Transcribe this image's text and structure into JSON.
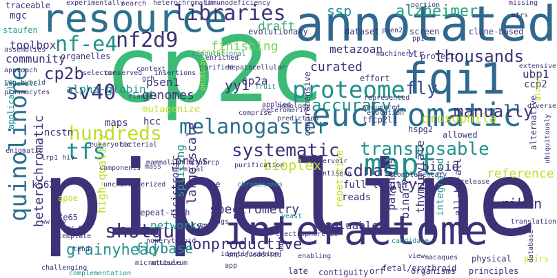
{
  "palette": {
    "navy": "#3b3277",
    "purple": "#452a70",
    "indigo": "#3e4c8a",
    "blue": "#31688e",
    "steel": "#2d708e",
    "teal": "#21918c",
    "sea": "#25a085",
    "green": "#3bbb75",
    "lime": "#7ad151",
    "yellow": "#bddf26",
    "gold": "#fde725",
    "faint": "#b8de29"
  },
  "words": [
    {
      "id": "pipeline",
      "text": "pipeline",
      "color": "navy"
    },
    {
      "id": "cp2c",
      "text": "cp2c",
      "color": "green"
    },
    {
      "id": "annotated",
      "text": "annotated",
      "color": "blue"
    },
    {
      "id": "resource",
      "text": "resource",
      "color": "steel"
    },
    {
      "id": "interactome",
      "text": "interactome",
      "color": "navy"
    },
    {
      "id": "fqi1",
      "text": "fqi1",
      "color": "blue"
    },
    {
      "id": "euchromatic",
      "text": "euchromatic",
      "color": "steel"
    },
    {
      "id": "quinolinone",
      "text": "quinolinone",
      "color": "steel"
    },
    {
      "id": "melanogaster",
      "text": "melanogaster",
      "color": "steel"
    },
    {
      "id": "mapt",
      "text": "mapt",
      "color": "teal"
    },
    {
      "id": "proteome",
      "text": "proteome",
      "color": "teal"
    },
    {
      "id": "transposable",
      "text": "transposable",
      "color": "teal"
    },
    {
      "id": "shotgun",
      "text": "shotgun",
      "color": "navy"
    },
    {
      "id": "hundreds",
      "text": "hundreds",
      "color": "yellow"
    },
    {
      "id": "libraries",
      "text": "libraries",
      "color": "navy"
    },
    {
      "id": "nf2d9",
      "text": "nf2d9",
      "color": "navy"
    },
    {
      "id": "nf-e4",
      "text": "nf-e4",
      "color": "teal"
    },
    {
      "id": "sv40",
      "text": "sv40",
      "color": "navy"
    },
    {
      "id": "tfs",
      "text": "tfs",
      "color": "teal"
    },
    {
      "id": "systematic",
      "text": "systematic",
      "color": "navy"
    },
    {
      "id": "cp2b",
      "text": "cp2b",
      "color": "navy"
    },
    {
      "id": "grainyhead",
      "text": "grainyhead",
      "color": "teal"
    },
    {
      "id": "accuracy",
      "text": "accuracy",
      "color": "teal"
    },
    {
      "id": "manually",
      "text": "manually",
      "color": "navy"
    },
    {
      "id": "thousands",
      "text": "thousands",
      "color": "navy"
    },
    {
      "id": "alzheimer",
      "text": "alzheimer",
      "color": "sea"
    },
    {
      "id": "fly",
      "text": "fly",
      "color": "indigo"
    },
    {
      "id": "y2h",
      "text": "y2h",
      "color": "navy"
    },
    {
      "id": "cdnas",
      "text": "cdnas",
      "color": "navy"
    },
    {
      "id": "heterochromatic",
      "text": "heterochromatic",
      "color": "navy"
    },
    {
      "id": "nonproductive",
      "text": "nonproductive",
      "color": "navy"
    },
    {
      "id": "flybase",
      "text": "flybase",
      "color": "teal"
    },
    {
      "id": "large-scale",
      "text": "large-scale",
      "color": "navy"
    },
    {
      "id": "curated",
      "text": "curated",
      "color": "navy"
    },
    {
      "id": "finishing",
      "text": "finishing",
      "color": "lime"
    },
    {
      "id": "draft",
      "text": "draft",
      "color": "green"
    },
    {
      "id": "ssp",
      "text": "ssp",
      "color": "teal"
    },
    {
      "id": "alpha-globin",
      "text": "alpha-globin",
      "color": "teal"
    },
    {
      "id": "psen1",
      "text": "psen1",
      "color": "navy"
    },
    {
      "id": "genomes",
      "text": "genomes",
      "color": "navy"
    },
    {
      "id": "cp2a",
      "text": "cp2a",
      "color": "navy"
    },
    {
      "id": "yy1",
      "text": "yy1",
      "color": "navy"
    },
    {
      "id": "drosophila",
      "text": "drosophila",
      "color": "yellow"
    },
    {
      "id": "mel",
      "text": "mel",
      "color": "navy"
    },
    {
      "id": "bioplex",
      "text": "bioplex",
      "color": "yellow"
    },
    {
      "id": "reference",
      "text": "reference",
      "color": "yellow"
    },
    {
      "id": "bioid",
      "text": "bioid",
      "color": "navy"
    },
    {
      "id": "riken",
      "text": "riken",
      "color": "navy"
    },
    {
      "id": "spectrometry",
      "text": "spectrometry",
      "color": "navy"
    },
    {
      "id": "high-quality",
      "text": "high-quality",
      "color": "yellow"
    },
    {
      "id": "splicing",
      "text": "splicing",
      "color": "sea"
    },
    {
      "id": "networks",
      "text": "networks",
      "color": "teal"
    },
    {
      "id": "metazoan",
      "text": "metazoan",
      "color": "navy"
    },
    {
      "id": "community",
      "text": "community",
      "color": "navy"
    },
    {
      "id": "toolbox",
      "text": "toolbox",
      "color": "navy"
    },
    {
      "id": "staufen",
      "text": "staufen",
      "color": "sea"
    },
    {
      "id": "mgc",
      "text": "mgc",
      "color": "navy"
    },
    {
      "id": "ubp1",
      "text": "ubp1",
      "color": "navy"
    },
    {
      "id": "ccp2",
      "text": "ccp2",
      "color": "navy"
    },
    {
      "id": "thymidylate",
      "text": "thymidylate",
      "color": "navy"
    },
    {
      "id": "binary",
      "text": "binary",
      "color": "navy"
    },
    {
      "id": "partners",
      "text": "partners",
      "color": "navy"
    },
    {
      "id": "integrated",
      "text": "integrated",
      "color": "teal"
    },
    {
      "id": "all-by-all",
      "text": "all-by-all",
      "color": "navy"
    },
    {
      "id": "repetitive",
      "text": "repetitive",
      "color": "yellow"
    },
    {
      "id": "valuable",
      "text": "valuable",
      "color": "navy"
    },
    {
      "id": "dicistronic",
      "text": "dicistronic",
      "color": "navy"
    },
    {
      "id": "tyms",
      "text": "tyms",
      "color": "navy"
    },
    {
      "id": "reads",
      "text": "reads",
      "color": "navy"
    },
    {
      "id": "ncstn",
      "text": "ncstn",
      "color": "navy"
    },
    {
      "id": "maps",
      "text": "maps",
      "color": "navy"
    },
    {
      "id": "hcc",
      "text": "hcc",
      "color": "navy"
    },
    {
      "id": "mutagenize",
      "text": "mutagenize",
      "color": "yellow"
    },
    {
      "id": "comprehensive",
      "text": "comprehensive",
      "color": "navy"
    },
    {
      "id": "full-length",
      "text": "full-length",
      "color": "navy"
    },
    {
      "id": "preys",
      "text": "preys",
      "color": "navy"
    },
    {
      "id": "k562",
      "text": "k562",
      "color": "navy"
    },
    {
      "id": "sse",
      "text": "sse",
      "color": "navy"
    },
    {
      "id": "apoe",
      "text": "apoe",
      "color": "yellow"
    },
    {
      "id": "fe65",
      "text": "fe65",
      "color": "navy"
    },
    {
      "id": "applicable",
      "text": "applicable",
      "color": "teal"
    },
    {
      "id": "repeat-rich",
      "text": "repeat-rich",
      "color": "navy"
    },
    {
      "id": "hspg2",
      "text": "hspg2",
      "color": "navy"
    },
    {
      "id": "ltr",
      "text": "ltr",
      "color": "navy"
    },
    {
      "id": "project",
      "text": "project",
      "color": "navy"
    },
    {
      "id": "effort",
      "text": "effort",
      "color": "navy"
    },
    {
      "id": "tfcp2l1",
      "text": "tfcp2l1",
      "color": "navy"
    },
    {
      "id": "allowed",
      "text": "allowed",
      "color": "navy"
    },
    {
      "id": "screen",
      "text": "screen",
      "color": "navy"
    },
    {
      "id": "clone-based",
      "text": "clone-based",
      "color": "navy"
    },
    {
      "id": "psen2",
      "text": "psen2",
      "color": "navy"
    },
    {
      "id": "dataset",
      "text": "dataset",
      "color": "navy"
    },
    {
      "id": "evolutionary",
      "text": "evolutionary",
      "color": "navy"
    },
    {
      "id": "errors",
      "text": "errors",
      "color": "yellow"
    },
    {
      "id": "organelles",
      "text": "organelles",
      "color": "navy"
    },
    {
      "id": "assemblies",
      "text": "assemblies",
      "color": "navy"
    },
    {
      "id": "grh",
      "text": "grh",
      "color": "navy"
    },
    {
      "id": "uas-tf",
      "text": "uas-tf",
      "color": "navy"
    },
    {
      "id": "physical",
      "text": "physical",
      "color": "navy"
    },
    {
      "id": "pairs",
      "text": "pairs",
      "color": "yellow"
    },
    {
      "id": "principles",
      "text": "principles",
      "color": "navy"
    },
    {
      "id": "organisms",
      "text": "organisms",
      "color": "navy"
    },
    {
      "id": "contiguity",
      "text": "contiguity",
      "color": "navy"
    },
    {
      "id": "orf",
      "text": "orf",
      "color": "navy"
    },
    {
      "id": "fetal-erythroid",
      "text": "fetal/erythroid",
      "color": "navy"
    },
    {
      "id": "late",
      "text": "late",
      "color": "navy"
    },
    {
      "id": "complementation",
      "text": "complementation",
      "color": "teal"
    },
    {
      "id": "challenging",
      "text": "challenging",
      "color": "navy"
    },
    {
      "id": "unprecedented",
      "text": "unprecedented",
      "color": "navy"
    },
    {
      "id": "microtubule",
      "text": "microtubule",
      "color": "navy"
    },
    {
      "id": "identification",
      "text": "identification",
      "color": "navy"
    },
    {
      "id": "traceable",
      "text": "traceable",
      "color": "navy"
    },
    {
      "id": "experimentally",
      "text": "experimentally",
      "color": "navy"
    },
    {
      "id": "search",
      "text": "search",
      "color": "navy"
    },
    {
      "id": "heterochromatin",
      "text": "heterochromatin",
      "color": "navy"
    },
    {
      "id": "immunodeficiency",
      "text": "immunodeficiency",
      "color": "navy"
    },
    {
      "id": "missing",
      "text": "missing",
      "color": "navy"
    },
    {
      "id": "portion",
      "text": "portion",
      "color": "navy"
    },
    {
      "id": "chromosomes",
      "text": "chromosomes",
      "color": "teal"
    },
    {
      "id": "uncharacterized",
      "text": "uncharacterized",
      "color": "navy"
    },
    {
      "id": "purification",
      "text": "purification",
      "color": "navy"
    },
    {
      "id": "terminal",
      "text": "terminal",
      "color": "navy"
    },
    {
      "id": "components",
      "text": "components",
      "color": "navy"
    },
    {
      "id": "enigmatic",
      "text": "enigmatic",
      "color": "navy"
    },
    {
      "id": "eukaryotic",
      "text": "eukaryotic",
      "color": "navy"
    },
    {
      "id": "bacterial",
      "text": "bacterial",
      "color": "navy"
    },
    {
      "id": "mammalian",
      "text": "mammalian",
      "color": "navy"
    },
    {
      "id": "reservoir",
      "text": "reservoir",
      "color": "navy"
    },
    {
      "id": "complementary",
      "text": "complementary",
      "color": "navy"
    },
    {
      "id": "release",
      "text": "release",
      "color": "navy"
    },
    {
      "id": "translation",
      "text": "translation",
      "color": "navy"
    },
    {
      "id": "two-hybrid",
      "text": "two-hybrid",
      "color": "navy"
    },
    {
      "id": "plasmacytes",
      "text": "plasmacytes",
      "color": "navy"
    },
    {
      "id": "accurate",
      "text": "accurate",
      "color": "teal"
    },
    {
      "id": "approach",
      "text": "approach",
      "color": "navy"
    },
    {
      "id": "selector",
      "text": "selector",
      "color": "navy"
    },
    {
      "id": "conserved",
      "text": "conserved",
      "color": "navy"
    },
    {
      "id": "insertions",
      "text": "insertions",
      "color": "navy"
    },
    {
      "id": "enriched",
      "text": "enriched",
      "color": "navy"
    },
    {
      "id": "computational",
      "text": "computational",
      "color": "teal"
    },
    {
      "id": "purified",
      "text": "purified",
      "color": "navy"
    },
    {
      "id": "machinery",
      "text": "machinery",
      "color": "navy"
    },
    {
      "id": "hepatocellular",
      "text": "hepatocellular",
      "color": "navy"
    },
    {
      "id": "context",
      "text": "context",
      "color": "navy"
    },
    {
      "id": "fruit",
      "text": "fruit",
      "color": "teal"
    },
    {
      "id": "comprise",
      "text": "comprise",
      "color": "navy"
    },
    {
      "id": "applied",
      "text": "applied",
      "color": "navy"
    },
    {
      "id": "heteromeric",
      "text": "heteromeric",
      "color": "navy"
    },
    {
      "id": "represented",
      "text": "represented",
      "color": "navy"
    },
    {
      "id": "sequenced",
      "text": "sequenced",
      "color": "navy"
    },
    {
      "id": "evolution",
      "text": "evolution",
      "color": "navy"
    },
    {
      "id": "prediction",
      "text": "prediction",
      "color": "navy"
    },
    {
      "id": "homology",
      "text": "homology",
      "color": "navy"
    },
    {
      "id": "classes",
      "text": "classes",
      "color": "navy"
    },
    {
      "id": "betatrcp",
      "text": "betatrcp",
      "color": "navy"
    },
    {
      "id": "mass",
      "text": "mass",
      "color": "navy"
    },
    {
      "id": "tags",
      "text": "tags",
      "color": "navy"
    },
    {
      "id": "yeast",
      "text": "yeast",
      "color": "teal"
    },
    {
      "id": "ww-psy",
      "text": "ww-psy",
      "color": "navy"
    },
    {
      "id": "template",
      "text": "template",
      "color": "navy"
    },
    {
      "id": "nonerythroid",
      "text": "nonerythroid",
      "color": "navy"
    },
    {
      "id": "antiserum",
      "text": "antiserum",
      "color": "navy"
    },
    {
      "id": "cdna",
      "text": "cdna",
      "color": "navy"
    },
    {
      "id": "enabling",
      "text": "enabling",
      "color": "navy"
    },
    {
      "id": "candidate",
      "text": "candidate",
      "color": "teal"
    },
    {
      "id": "macaques",
      "text": "macaques",
      "color": "navy"
    },
    {
      "id": "view",
      "text": "view",
      "color": "navy"
    },
    {
      "id": "database",
      "text": "database",
      "color": "navy"
    },
    {
      "id": "tend",
      "text": "tend",
      "color": "navy"
    },
    {
      "id": "app",
      "text": "app",
      "color": "navy"
    },
    {
      "id": "antisera",
      "text": "antisera",
      "color": "navy"
    },
    {
      "id": "electrophoretic",
      "text": "electrophoretic",
      "color": "navy"
    },
    {
      "id": "lrp1",
      "text": "lrp1 hiv",
      "color": "navy"
    },
    {
      "id": "ontology",
      "text": "ontology",
      "color": "faint"
    },
    {
      "id": "global",
      "text": "global",
      "color": "yellow"
    },
    {
      "id": "diverse",
      "text": "diverse",
      "color": "navy"
    },
    {
      "id": "extensive",
      "text": "extensive",
      "color": "navy"
    },
    {
      "id": "alternative",
      "text": "alternative",
      "color": "navy"
    },
    {
      "id": "ubiquitously",
      "text": "ubiquitously",
      "color": "navy"
    },
    {
      "id": "utrs",
      "text": "utrs",
      "color": "navy"
    },
    {
      "id": "ppi",
      "text": "ppi",
      "color": "navy"
    }
  ]
}
